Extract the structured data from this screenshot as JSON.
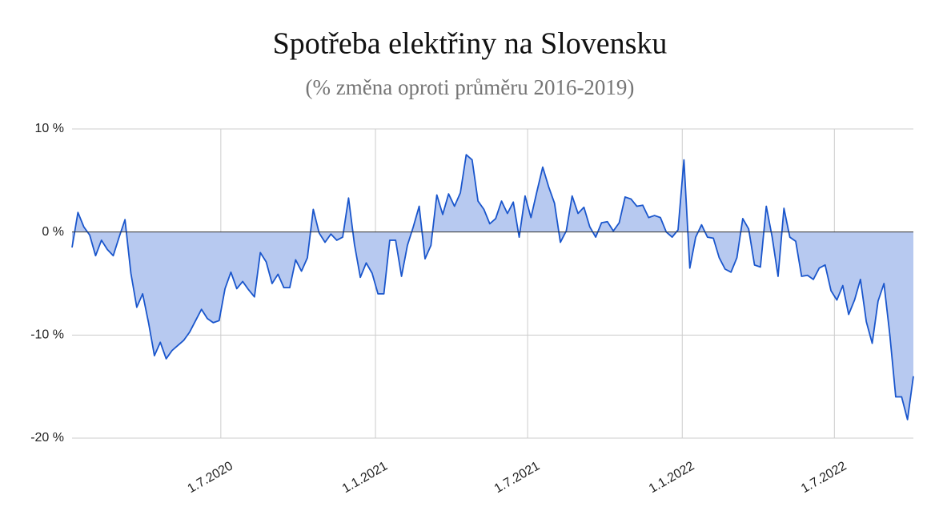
{
  "chart_data": {
    "type": "area",
    "title": "Spotřeba elektřiny na Slovensku",
    "subtitle": "(% změna oproti průměru 2016-2019)",
    "x": [
      "2020-01-06",
      "2020-01-13",
      "2020-01-20",
      "2020-01-27",
      "2020-02-03",
      "2020-02-10",
      "2020-02-17",
      "2020-02-24",
      "2020-03-02",
      "2020-03-09",
      "2020-03-16",
      "2020-03-23",
      "2020-03-30",
      "2020-04-06",
      "2020-04-13",
      "2020-04-20",
      "2020-04-27",
      "2020-05-04",
      "2020-05-11",
      "2020-05-18",
      "2020-05-25",
      "2020-06-01",
      "2020-06-08",
      "2020-06-15",
      "2020-06-22",
      "2020-06-29",
      "2020-07-06",
      "2020-07-13",
      "2020-07-20",
      "2020-07-27",
      "2020-08-03",
      "2020-08-10",
      "2020-08-17",
      "2020-08-24",
      "2020-08-31",
      "2020-09-07",
      "2020-09-14",
      "2020-09-21",
      "2020-09-28",
      "2020-10-05",
      "2020-10-12",
      "2020-10-19",
      "2020-10-26",
      "2020-11-02",
      "2020-11-09",
      "2020-11-16",
      "2020-11-23",
      "2020-11-30",
      "2020-12-07",
      "2020-12-14",
      "2020-12-21",
      "2020-12-28",
      "2021-01-04",
      "2021-01-11",
      "2021-01-18",
      "2021-01-25",
      "2021-02-01",
      "2021-02-08",
      "2021-02-15",
      "2021-02-22",
      "2021-03-01",
      "2021-03-08",
      "2021-03-15",
      "2021-03-22",
      "2021-03-29",
      "2021-04-05",
      "2021-04-12",
      "2021-04-19",
      "2021-04-26",
      "2021-05-03",
      "2021-05-10",
      "2021-05-17",
      "2021-05-24",
      "2021-05-31",
      "2021-06-07",
      "2021-06-14",
      "2021-06-21",
      "2021-06-28",
      "2021-07-05",
      "2021-07-12",
      "2021-07-19",
      "2021-07-26",
      "2021-08-02",
      "2021-08-09",
      "2021-08-16",
      "2021-08-23",
      "2021-08-30",
      "2021-09-06",
      "2021-09-13",
      "2021-09-20",
      "2021-09-27",
      "2021-10-04",
      "2021-10-11",
      "2021-10-18",
      "2021-10-25",
      "2021-11-01",
      "2021-11-08",
      "2021-11-15",
      "2021-11-22",
      "2021-11-29",
      "2021-12-06",
      "2021-12-13",
      "2021-12-20",
      "2021-12-27",
      "2022-01-03",
      "2022-01-10",
      "2022-01-17",
      "2022-01-24",
      "2022-01-31",
      "2022-02-07",
      "2022-02-14",
      "2022-02-21",
      "2022-02-28",
      "2022-03-07",
      "2022-03-14",
      "2022-03-21",
      "2022-03-28",
      "2022-04-04",
      "2022-04-11",
      "2022-04-18",
      "2022-04-25",
      "2022-05-02",
      "2022-05-09",
      "2022-05-16",
      "2022-05-23",
      "2022-05-30",
      "2022-06-06",
      "2022-06-13",
      "2022-06-20",
      "2022-06-27",
      "2022-07-04",
      "2022-07-11",
      "2022-07-18",
      "2022-07-25",
      "2022-08-01",
      "2022-08-08",
      "2022-08-15",
      "2022-08-22",
      "2022-08-29",
      "2022-09-05",
      "2022-09-12",
      "2022-09-19",
      "2022-09-26",
      "2022-10-03"
    ],
    "series": [
      {
        "color": "#1a56cc",
        "fill": "#b7c9f0",
        "values": [
          -1.5,
          1.9,
          0.5,
          -0.3,
          -2.3,
          -0.8,
          -1.7,
          -2.3,
          -0.5,
          1.2,
          -4,
          -7.3,
          -6,
          -8.8,
          -12,
          -10.7,
          -12.3,
          -11.5,
          -11,
          -10.5,
          -9.7,
          -8.6,
          -7.5,
          -8.4,
          -8.8,
          -8.6,
          -5.5,
          -3.9,
          -5.5,
          -4.8,
          -5.6,
          -6.3,
          -2,
          -2.9,
          -5,
          -4.1,
          -5.4,
          -5.4,
          -2.7,
          -3.8,
          -2.5,
          2.2,
          -0.1,
          -1,
          -0.2,
          -0.8,
          -0.5,
          3.3,
          -1.2,
          -4.4,
          -3,
          -4,
          -6,
          -6,
          -0.8,
          -0.8,
          -4.3,
          -1.3,
          0.5,
          2.5,
          -2.6,
          -1.3,
          3.6,
          1.7,
          3.7,
          2.5,
          3.8,
          7.5,
          7,
          3,
          2.2,
          0.8,
          1.3,
          3,
          1.8,
          2.9,
          -0.5,
          3.5,
          1.4,
          3.9,
          6.3,
          4.4,
          2.8,
          -1,
          0.1,
          3.5,
          1.8,
          2.4,
          0.5,
          -0.5,
          0.9,
          1,
          0.1,
          0.9,
          3.4,
          3.2,
          2.5,
          2.6,
          1.4,
          1.6,
          1.4,
          0,
          -0.5,
          0.2,
          7,
          -3.5,
          -0.5,
          0.7,
          -0.5,
          -0.6,
          -2.5,
          -3.6,
          -3.9,
          -2.5,
          1.3,
          0.3,
          -3.2,
          -3.4,
          2.5,
          -0.5,
          -4.3,
          2.3,
          -0.5,
          -0.9,
          -4.3,
          -4.2,
          -4.6,
          -3.5,
          -3.2,
          -5.7,
          -6.6,
          -5.2,
          -8,
          -6.6,
          -4.6,
          -8.7,
          -10.8,
          -6.7,
          -5,
          -10,
          -16,
          -16,
          -18.2,
          -14
        ]
      }
    ],
    "xlim": [
      "2020-01-06",
      "2022-10-03"
    ],
    "xticks": [
      {
        "value": "2020-07-01",
        "label": "1.7.2020"
      },
      {
        "value": "2021-01-01",
        "label": "1.1.2021"
      },
      {
        "value": "2021-07-01",
        "label": "1.7.2021"
      },
      {
        "value": "2022-01-01",
        "label": "1.1.2022"
      },
      {
        "value": "2022-07-01",
        "label": "1.7.2022"
      }
    ],
    "ylim": [
      -20,
      10
    ],
    "yticks": [
      {
        "value": -20,
        "label": "-20 %"
      },
      {
        "value": -10,
        "label": "-10 %"
      },
      {
        "value": 0,
        "label": "0 %"
      },
      {
        "value": 10,
        "label": "10 %"
      }
    ],
    "grid": true
  }
}
